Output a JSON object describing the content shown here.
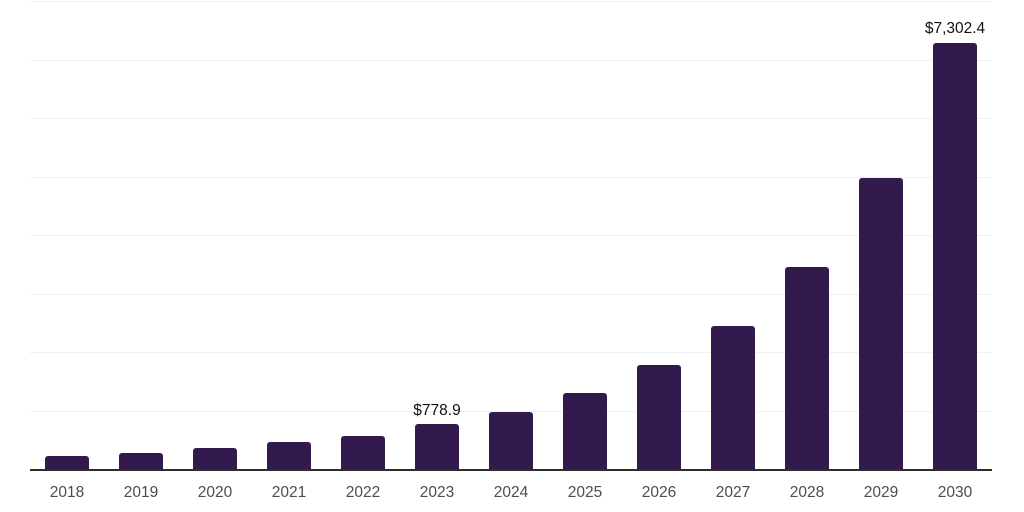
{
  "chart_data": {
    "type": "bar",
    "categories": [
      "2018",
      "2019",
      "2020",
      "2021",
      "2022",
      "2023",
      "2024",
      "2025",
      "2026",
      "2027",
      "2028",
      "2029",
      "2030"
    ],
    "values": [
      240,
      295,
      380,
      478,
      590,
      778.9,
      1000,
      1322,
      1793,
      2470,
      3465,
      4985,
      7302.4
    ],
    "annotations": [
      {
        "category": "2023",
        "text": "$778.9"
      },
      {
        "category": "2030",
        "text": "$7,302.4"
      }
    ],
    "title": "",
    "xlabel": "",
    "ylabel": "",
    "ylim": [
      0,
      8000
    ],
    "gridline_interval": 1000,
    "grid": "horizontal",
    "y_tick_labels_visible": false,
    "legend": "none",
    "value_prefix": "$"
  },
  "style": {
    "background_color": "#ffffff",
    "bar_color": "#331a4d",
    "grid_color": "#f0f0f0",
    "axis_color": "#2e2e2e",
    "tick_label_color": "#4c4c4c",
    "data_label_color": "#111111"
  }
}
